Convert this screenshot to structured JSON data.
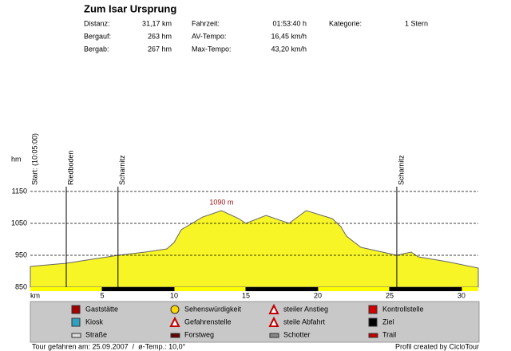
{
  "header": {
    "title": "Zum Isar Ursprung",
    "stats": [
      {
        "label": "Distanz:",
        "value": "31,17 km"
      },
      {
        "label": "Fahrzeit:",
        "value": "01:53:40 h"
      },
      {
        "label": "Kategorie:",
        "value": "1 Stern"
      },
      {
        "label": "Bergauf:",
        "value": "263 hm"
      },
      {
        "label": "AV-Tempo:",
        "value": "16,45 km/h"
      },
      {
        "label": "Bergab:",
        "value": "267 hm"
      },
      {
        "label": "Max-Tempo:",
        "value": "43,20 km/h"
      }
    ]
  },
  "chart_data": {
    "type": "area",
    "y_label": "hm",
    "x_label": "km",
    "x": [
      0,
      2.5,
      6.1,
      8,
      9.5,
      10,
      10.5,
      12,
      13.3,
      14.5,
      15,
      16.4,
      18,
      19.2,
      21,
      21.6,
      22,
      23,
      25.5,
      26.5,
      27,
      29,
      31.17
    ],
    "values": [
      915,
      925,
      950,
      960,
      970,
      990,
      1030,
      1070,
      1090,
      1065,
      1050,
      1075,
      1050,
      1090,
      1065,
      1040,
      1010,
      975,
      950,
      960,
      945,
      930,
      910
    ],
    "color": "#f7f526",
    "xlim": [
      0,
      31.17
    ],
    "ylim": [
      850,
      1150
    ],
    "xticks": [
      5,
      10,
      15,
      20,
      25,
      30
    ],
    "yticks": [
      850,
      950,
      1050,
      1150
    ],
    "grid": true,
    "markers": [
      {
        "x": 0,
        "label": "Start: (10:05:00)"
      },
      {
        "x": 2.5,
        "label": "Riedboden"
      },
      {
        "x": 6.1,
        "label": "Scharnitz"
      },
      {
        "x": 25.5,
        "label": "Scharnitz"
      }
    ],
    "annotations": [
      {
        "text": "1090 m"
      }
    ]
  },
  "legend": [
    "Gaststätte",
    "Kiosk",
    "Straße",
    "Sehenswürdigkeit",
    "Gefahrenstelle",
    "Forstweg",
    "steiler Anstieg",
    "steile Abfahrt",
    "Schotter",
    "Kontrollstelle",
    "Ziel",
    "Trail"
  ],
  "footer": {
    "left": "Tour gefahren am: 25.09.2007  /  ø-Temp.: 10,0°",
    "right": "Profil created by CicloTour"
  }
}
